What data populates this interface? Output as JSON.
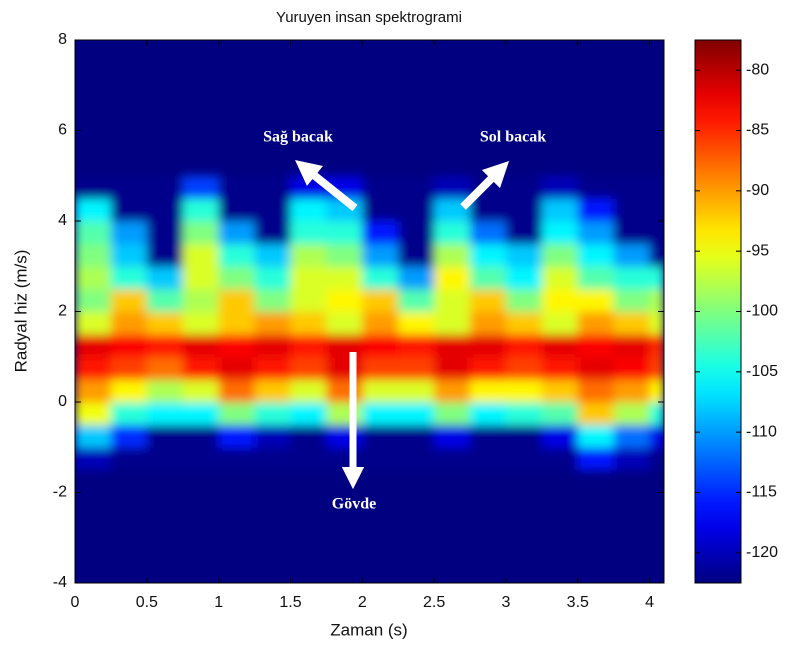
{
  "chart_data": {
    "type": "spectrogram",
    "title": "Yuruyen insan spektrogrami",
    "x_label": "Zaman (s)",
    "y_label": "Radyal hiz (m/s)",
    "colormap": "jet",
    "xlim": [
      0,
      4.1
    ],
    "ylim": [
      -4,
      8
    ],
    "xticks": [
      0,
      0.5,
      1,
      1.5,
      2,
      2.5,
      3,
      3.5,
      4
    ],
    "yticks": [
      -4,
      -2,
      0,
      2,
      4,
      6,
      8
    ],
    "clim": [
      -122.5,
      -77.5
    ],
    "cticks": [
      -120,
      -115,
      -110,
      -105,
      -100,
      -95,
      -90,
      -85,
      -80
    ],
    "xbins": [
      0,
      0.25,
      0.5,
      0.75,
      1,
      1.25,
      1.5,
      1.75,
      2,
      2.25,
      2.5,
      2.75,
      3,
      3.25,
      3.5,
      3.75,
      4,
      4.1
    ],
    "ybins": [
      -1.5,
      -1,
      -0.5,
      0,
      0.5,
      1,
      1.5,
      2,
      2.5,
      3,
      3.5,
      4,
      4.5,
      5
    ],
    "z": [
      [
        -120,
        -122,
        -122,
        -122,
        -122,
        -122,
        -122,
        -122,
        -122,
        -122,
        -122,
        -122,
        -122,
        -122,
        -116,
        -120,
        -122
      ],
      [
        -108,
        -115,
        -122,
        -122,
        -116,
        -120,
        -122,
        -118,
        -122,
        -122,
        -118,
        -122,
        -122,
        -118,
        -106,
        -112,
        -118
      ],
      [
        -95,
        -104,
        -106,
        -106,
        -100,
        -104,
        -106,
        -98,
        -106,
        -106,
        -100,
        -106,
        -104,
        -102,
        -92,
        -98,
        -104
      ],
      [
        -90,
        -94,
        -98,
        -96,
        -88,
        -92,
        -96,
        -88,
        -96,
        -96,
        -90,
        -94,
        -94,
        -92,
        -88,
        -90,
        -94
      ],
      [
        -84,
        -86,
        -88,
        -84,
        -82,
        -84,
        -86,
        -82,
        -86,
        -86,
        -82,
        -84,
        -86,
        -84,
        -82,
        -83,
        -86
      ],
      [
        -82,
        -83,
        -84,
        -82,
        -83,
        -82,
        -84,
        -82,
        -83,
        -84,
        -82,
        -82,
        -84,
        -82,
        -83,
        -82,
        -85
      ],
      [
        -96,
        -90,
        -92,
        -96,
        -92,
        -90,
        -92,
        -96,
        -90,
        -94,
        -96,
        -90,
        -92,
        -96,
        -90,
        -92,
        -96
      ],
      [
        -100,
        -92,
        -102,
        -98,
        -92,
        -100,
        -96,
        -94,
        -92,
        -102,
        -96,
        -92,
        -100,
        -94,
        -94,
        -100,
        -98
      ],
      [
        -98,
        -104,
        -108,
        -96,
        -100,
        -104,
        -96,
        -96,
        -104,
        -110,
        -94,
        -102,
        -106,
        -96,
        -102,
        -104,
        -104
      ],
      [
        -100,
        -108,
        -122,
        -96,
        -104,
        -108,
        -98,
        -100,
        -110,
        -122,
        -98,
        -106,
        -108,
        -100,
        -106,
        -110,
        -122
      ],
      [
        -102,
        -110,
        -122,
        -100,
        -110,
        -122,
        -104,
        -104,
        -116,
        -122,
        -104,
        -112,
        -122,
        -106,
        -110,
        -122,
        -122
      ],
      [
        -106,
        -122,
        -122,
        -104,
        -122,
        -122,
        -106,
        -108,
        -122,
        -122,
        -108,
        -122,
        -122,
        -108,
        -116,
        -122,
        -122
      ],
      [
        -122,
        -122,
        -122,
        -114,
        -122,
        -122,
        -118,
        -118,
        -122,
        -122,
        -120,
        -122,
        -122,
        -120,
        -122,
        -122,
        -122
      ]
    ],
    "annotations": [
      {
        "text": "Sağ bacak"
      },
      {
        "text": "Sol bacak"
      },
      {
        "text": "Gövde"
      }
    ]
  }
}
